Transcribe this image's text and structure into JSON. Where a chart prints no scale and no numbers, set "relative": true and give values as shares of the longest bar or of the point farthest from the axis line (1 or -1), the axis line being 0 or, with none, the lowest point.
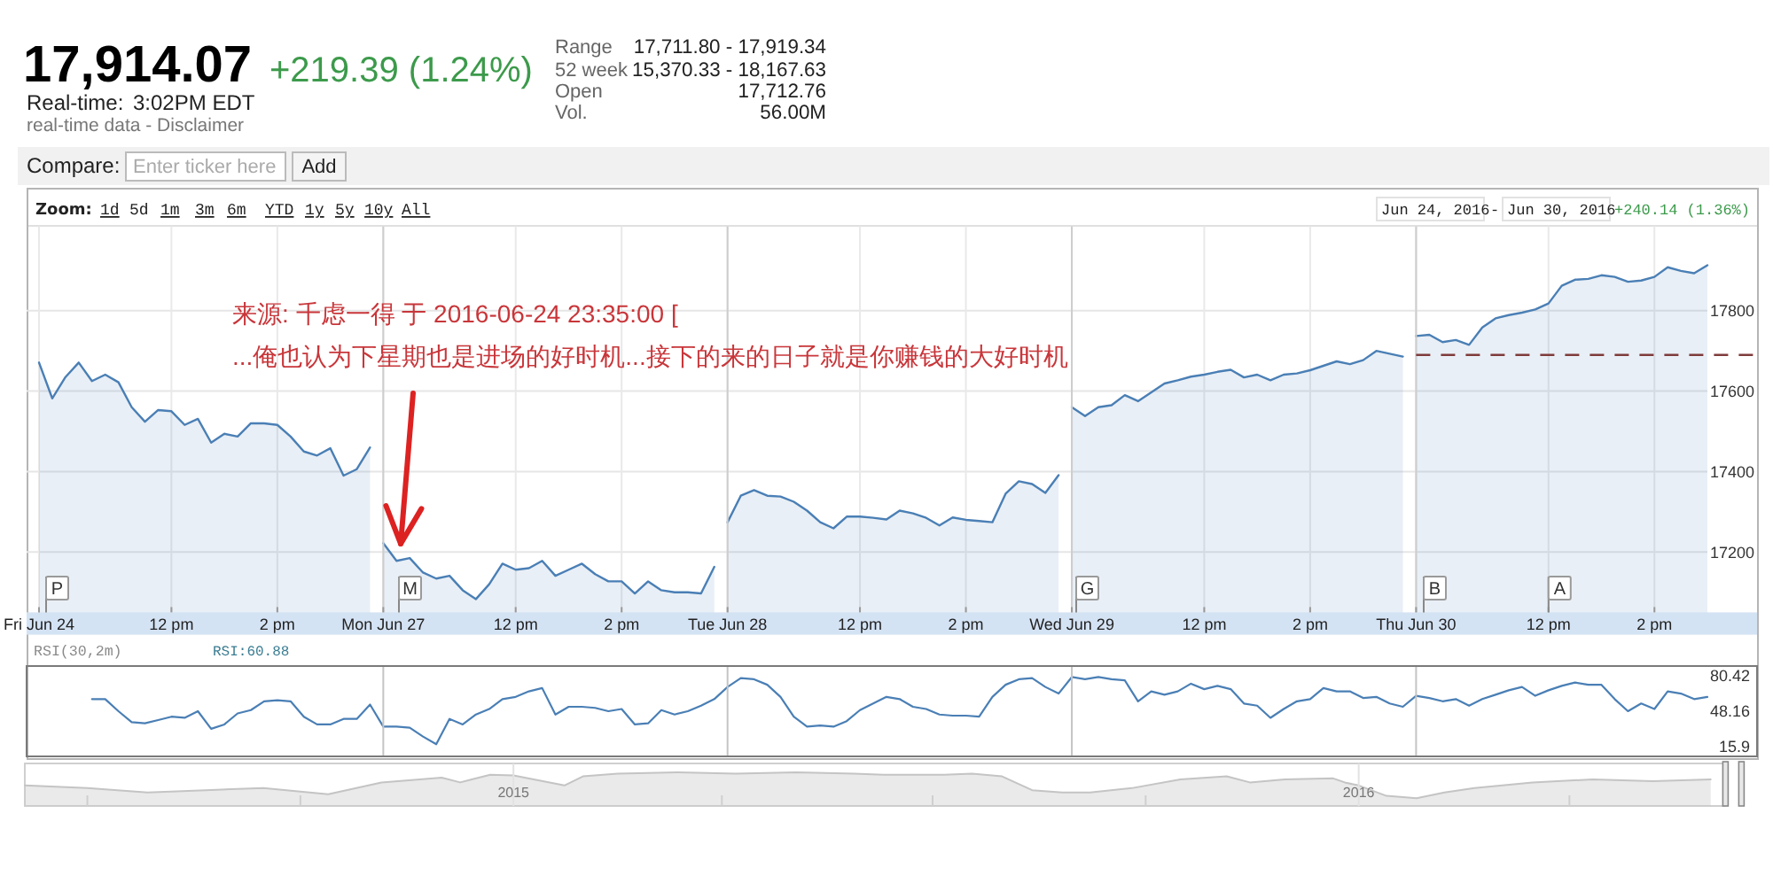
{
  "chart_data": [
    {
      "type": "area",
      "title": "17,914.07",
      "subtitle": "+219.39 (1.24%)",
      "categories": [
        "Fri Jun 24",
        null,
        null,
        null,
        null,
        null,
        null,
        null,
        null,
        null,
        "12 pm",
        null,
        null,
        null,
        null,
        null,
        null,
        null,
        "2 pm",
        null,
        null,
        null,
        null,
        null,
        null,
        null,
        "Mon Jun 27",
        null,
        null,
        null,
        null,
        null,
        null,
        null,
        null,
        null,
        "12 pm",
        null,
        null,
        null,
        null,
        null,
        null,
        null,
        "2 pm",
        null,
        null,
        null,
        null,
        null,
        null,
        null,
        "Tue Jun 28",
        null,
        null,
        null,
        null,
        null,
        null,
        null,
        null,
        null,
        "12 pm",
        null,
        null,
        null,
        null,
        null,
        null,
        null,
        "2 pm",
        null,
        null,
        null,
        null,
        null,
        null,
        null,
        "Wed Jun 29",
        null,
        null,
        null,
        null,
        null,
        null,
        null,
        null,
        null,
        "12 pm",
        null,
        null,
        null,
        null,
        null,
        null,
        null,
        "2 pm",
        null,
        null,
        null,
        null,
        null,
        null,
        null,
        "Thu Jun 30",
        null,
        null,
        null,
        null,
        null,
        null,
        null,
        null,
        null,
        "12 pm",
        null,
        null,
        null,
        null,
        null,
        null,
        null,
        "2 pm",
        null,
        null,
        null,
        null
      ],
      "series": [
        {
          "color": "#4a7fb5",
          "values": [
            17671,
            17582,
            17635,
            17671,
            17625,
            17641,
            17622,
            17560,
            17524,
            17553,
            17550,
            17516,
            17531,
            17472,
            17494,
            17487,
            17520,
            17520,
            17516,
            17487,
            17450,
            17440,
            17458,
            17390,
            17406,
            17460,
            null,
            null,
            null,
            null,
            null,
            null,
            null,
            null,
            null,
            null,
            null,
            null,
            null,
            null,
            null,
            null,
            null,
            null,
            null,
            null,
            null,
            null,
            null,
            null,
            null,
            null,
            null,
            null,
            null,
            null,
            null,
            null,
            null,
            null,
            null,
            null,
            null,
            null,
            null,
            null,
            null,
            null,
            null,
            null,
            null,
            null,
            null,
            null,
            null,
            null,
            null,
            null,
            null,
            null,
            null,
            null,
            null,
            null,
            null,
            null,
            null,
            null,
            null,
            null,
            null,
            null,
            null,
            null,
            null,
            null,
            null,
            null,
            null,
            null,
            null,
            null,
            null,
            null,
            null,
            null,
            null,
            null,
            null,
            null,
            null,
            null,
            null,
            null,
            null,
            null,
            null,
            null,
            null,
            null,
            null,
            null,
            null,
            null,
            null,
            null,
            null
          ]
        },
        {
          "color": "#4a7fb5",
          "values": [
            null,
            null,
            null,
            null,
            null,
            null,
            null,
            null,
            null,
            null,
            null,
            null,
            null,
            null,
            null,
            null,
            null,
            null,
            null,
            null,
            null,
            null,
            null,
            null,
            null,
            null,
            17222,
            17178,
            17185,
            17149,
            17134,
            17141,
            17105,
            17083,
            17120,
            17171,
            17156,
            17160,
            17178,
            17141,
            17156,
            17171,
            17145,
            17127,
            17127,
            17097,
            17127,
            17105,
            17100,
            17100,
            17097,
            17163,
            null,
            null,
            null,
            null,
            null,
            null,
            null,
            null,
            null,
            null,
            null,
            null,
            null,
            null,
            null,
            null,
            null,
            null,
            null,
            null,
            null,
            null,
            null,
            null,
            null,
            null,
            null,
            null,
            null,
            null,
            null,
            null,
            null,
            null,
            null,
            null,
            null,
            null,
            null,
            null,
            null,
            null,
            null,
            null,
            null,
            null,
            null,
            null,
            null,
            null,
            null,
            null,
            null,
            null,
            null,
            null,
            null,
            null,
            null,
            null,
            null,
            null,
            null,
            null,
            null,
            null,
            null,
            null,
            null,
            null,
            null,
            null,
            null,
            null,
            null
          ]
        },
        {
          "color": "#4a7fb5",
          "values": [
            null,
            null,
            null,
            null,
            null,
            null,
            null,
            null,
            null,
            null,
            null,
            null,
            null,
            null,
            null,
            null,
            null,
            null,
            null,
            null,
            null,
            null,
            null,
            null,
            null,
            null,
            null,
            null,
            null,
            null,
            null,
            null,
            null,
            null,
            null,
            null,
            null,
            null,
            null,
            null,
            null,
            null,
            null,
            null,
            null,
            null,
            null,
            null,
            null,
            null,
            null,
            null,
            17274,
            17340,
            17354,
            17340,
            17338,
            17325,
            17303,
            17274,
            17259,
            17288,
            17288,
            17285,
            17281,
            17303,
            17296,
            17285,
            17266,
            17286,
            17280,
            17277,
            17274,
            17345,
            17376,
            17369,
            17347,
            17391,
            null,
            null,
            null,
            null,
            null,
            null,
            null,
            null,
            null,
            null,
            null,
            null,
            null,
            null,
            null,
            null,
            null,
            null,
            null,
            null,
            null,
            null,
            null,
            null,
            null,
            null,
            null,
            null,
            null,
            null,
            null,
            null,
            null,
            null,
            null,
            null,
            null,
            null,
            null,
            null,
            null,
            null,
            null,
            null,
            null,
            null,
            null,
            null,
            null
          ]
        },
        {
          "color": "#4a7fb5",
          "values": [
            null,
            null,
            null,
            null,
            null,
            null,
            null,
            null,
            null,
            null,
            null,
            null,
            null,
            null,
            null,
            null,
            null,
            null,
            null,
            null,
            null,
            null,
            null,
            null,
            null,
            null,
            null,
            null,
            null,
            null,
            null,
            null,
            null,
            null,
            null,
            null,
            null,
            null,
            null,
            null,
            null,
            null,
            null,
            null,
            null,
            null,
            null,
            null,
            null,
            null,
            null,
            null,
            null,
            null,
            null,
            null,
            null,
            null,
            null,
            null,
            null,
            null,
            null,
            null,
            null,
            null,
            null,
            null,
            null,
            null,
            null,
            null,
            null,
            null,
            null,
            null,
            null,
            null,
            17560,
            17538,
            17560,
            17565,
            17590,
            17575,
            17597,
            17619,
            17627,
            17636,
            17641,
            17648,
            17653,
            17634,
            17641,
            17627,
            17641,
            17644,
            17652,
            17663,
            17674,
            17667,
            17677,
            17700,
            17693,
            17686,
            null,
            null,
            null,
            null,
            null,
            null,
            null,
            null,
            null,
            null,
            null,
            null,
            null,
            null,
            null,
            null,
            null,
            null,
            null,
            null,
            null,
            null,
            null
          ]
        },
        {
          "color": "#4a7fb5",
          "values": [
            null,
            null,
            null,
            null,
            null,
            null,
            null,
            null,
            null,
            null,
            null,
            null,
            null,
            null,
            null,
            null,
            null,
            null,
            null,
            null,
            null,
            null,
            null,
            null,
            null,
            null,
            null,
            null,
            null,
            null,
            null,
            null,
            null,
            null,
            null,
            null,
            null,
            null,
            null,
            null,
            null,
            null,
            null,
            null,
            null,
            null,
            null,
            null,
            null,
            null,
            null,
            null,
            null,
            null,
            null,
            null,
            null,
            null,
            null,
            null,
            null,
            null,
            null,
            null,
            null,
            null,
            null,
            null,
            null,
            null,
            null,
            null,
            null,
            null,
            null,
            null,
            null,
            null,
            null,
            null,
            null,
            null,
            null,
            null,
            null,
            null,
            null,
            null,
            null,
            null,
            null,
            null,
            null,
            null,
            null,
            null,
            null,
            null,
            null,
            null,
            null,
            null,
            null,
            null,
            17737,
            17740,
            17722,
            17727,
            17715,
            17758,
            17781,
            17789,
            17795,
            17803,
            17818,
            17862,
            17877,
            17879,
            17888,
            17884,
            17872,
            17875,
            17884,
            17908,
            17899,
            17893,
            17913
          ]
        }
      ],
      "ylim": [
        17050,
        18010
      ],
      "yticks": [
        17200,
        17400,
        17600,
        17800
      ],
      "grid": true,
      "ref_lines": [
        {
          "axis": "y",
          "value": 17690,
          "color": "#7f3b3b",
          "line_style": "dashed"
        }
      ],
      "annotations": [
        "Real-time:",
        "3:02PM EDT",
        "real-time data - Disclaimer",
        "Range",
        "17,711.80 - 17,919.34",
        "52 week",
        "15,370.33 - 18,167.63",
        "Open",
        "17,712.76",
        "Vol.",
        "56.00M",
        "Compare:",
        "Enter ticker here",
        "Add",
        "Zoom:",
        "1d",
        "5d",
        "1m",
        "3m",
        "6m",
        "YTD",
        "1y",
        "5y",
        "10y",
        "All",
        "Jun 24, 2016",
        "-",
        "Jun 30, 2016",
        "+240.14 (1.36%)",
        "来源: 千虑一得 于 2016-06-24 23:35:00 [",
        "...俺也认为下星期也是进场的好时机...接下的来的日子就是你赚钱的大好时机",
        "P",
        "M",
        "G",
        "B",
        "A"
      ]
    },
    {
      "type": "line",
      "title": "RSI(30,2m)",
      "annotations": [
        "RSI:60.88"
      ],
      "categories": [
        null,
        null,
        null,
        null,
        null,
        null,
        null,
        null,
        null,
        null,
        null,
        null,
        null,
        null,
        null,
        null,
        null,
        null,
        null,
        null,
        null,
        null,
        null,
        null,
        null,
        null,
        null,
        null,
        null,
        null,
        null,
        null,
        null,
        null,
        null,
        null,
        null,
        null,
        null,
        null,
        null,
        null,
        null,
        null,
        null,
        null,
        null,
        null,
        null,
        null,
        null,
        null,
        null,
        null,
        null,
        null,
        null,
        null,
        null,
        null,
        null,
        null,
        null,
        null,
        null,
        null,
        null,
        null,
        null,
        null,
        null,
        null,
        null,
        null,
        null,
        null,
        null,
        null,
        null,
        null,
        null,
        null,
        null,
        null,
        null,
        null,
        null,
        null,
        null,
        null,
        null,
        null,
        null,
        null,
        null,
        null,
        null,
        null,
        null,
        null,
        null,
        null,
        null,
        null,
        null,
        null,
        null,
        null,
        null,
        null,
        null,
        null,
        null,
        null,
        null,
        null,
        null,
        null,
        null,
        null,
        null,
        null,
        null,
        null,
        null,
        null,
        null
      ],
      "series": [
        {
          "color": "#4a7fb5",
          "values": [
            null,
            null,
            null,
            null,
            59,
            59,
            48,
            38,
            37,
            40,
            43,
            42,
            48,
            32,
            36,
            46,
            49,
            57,
            58,
            57,
            43,
            36,
            36,
            41,
            41,
            54,
            34,
            34,
            33,
            25,
            18,
            41,
            36,
            45,
            50,
            59,
            61,
            66,
            69,
            45,
            52,
            52,
            51,
            48,
            50,
            36,
            37,
            49,
            45,
            48,
            53,
            59,
            70,
            78,
            77,
            72,
            61,
            43,
            34,
            35,
            34,
            39,
            49,
            55,
            61,
            59,
            52,
            50,
            45,
            44,
            44,
            43,
            61,
            72,
            77,
            78,
            70,
            64,
            79,
            77,
            79,
            77,
            76,
            57,
            66,
            63,
            66,
            73,
            68,
            71,
            68,
            55,
            53,
            42,
            50,
            57,
            59,
            69,
            66,
            66,
            60,
            61,
            55,
            52,
            62,
            60,
            57,
            59,
            53,
            59,
            63,
            67,
            70,
            62,
            67,
            71,
            74,
            72,
            72,
            59,
            48,
            55,
            50,
            66,
            64,
            59,
            61
          ]
        }
      ],
      "ylim": [
        7,
        89
      ],
      "yticks": [
        15.9,
        48.16,
        80.42
      ],
      "tick_labels": "y"
    },
    {
      "type": "area",
      "relative": true,
      "x": [
        "2014-06-04",
        "2014-07-01",
        "2014-07-27",
        "2014-08-21",
        "2014-09-15",
        "2014-10-13",
        "2014-11-05",
        "2014-12-01",
        "2014-12-09",
        "2014-12-14",
        "2014-12-22",
        "2015-01-01",
        "2015-01-23",
        "2015-01-31",
        "2015-02-15",
        "2015-03-13",
        "2015-04-07",
        "2015-05-03",
        "2015-05-28",
        "2015-06-10",
        "2015-07-06",
        "2015-07-18",
        "2015-07-31",
        "2015-08-13",
        "2015-08-26",
        "2015-09-07",
        "2015-09-25",
        "2015-10-16",
        "2015-11-05",
        "2015-11-15",
        "2015-11-30",
        "2015-12-21",
        "2015-12-26",
        "2016-01-01",
        "2016-01-13",
        "2016-01-26",
        "2016-02-07",
        "2016-02-20",
        "2016-03-16",
        "2016-04-11",
        "2016-05-07",
        "2016-06-01"
      ],
      "series": [
        {
          "color": "#c4c4c4",
          "values": [
            0.61,
            0.53,
            0.4,
            0.47,
            0.53,
            0.35,
            0.7,
            0.84,
            0.7,
            0.79,
            0.93,
            0.91,
            0.61,
            0.88,
            0.96,
            1,
            0.96,
            1,
            0.96,
            0.93,
            0.93,
            0.96,
            0.88,
            0.47,
            0.4,
            0.4,
            0.53,
            0.79,
            0.88,
            0.7,
            0.79,
            0.82,
            0.7,
            0.61,
            0.3,
            0.23,
            0.4,
            0.53,
            0.7,
            0.79,
            0.74,
            0.79
          ]
        }
      ],
      "xlim": [
        "2014-06-04",
        "2016-06-07"
      ],
      "xticks": [
        {
          "value": "2014-07-01",
          "label": null
        },
        {
          "value": "2014-10-01",
          "label": null
        },
        {
          "value": "2015-01-01",
          "label": "2015"
        },
        {
          "value": "2015-04-01",
          "label": null
        },
        {
          "value": "2015-07-01",
          "label": null
        },
        {
          "value": "2015-10-01",
          "label": null
        },
        {
          "value": "2016-01-01",
          "label": "2016"
        },
        {
          "value": "2016-04-01",
          "label": null
        }
      ],
      "tick_labels": "x"
    }
  ]
}
